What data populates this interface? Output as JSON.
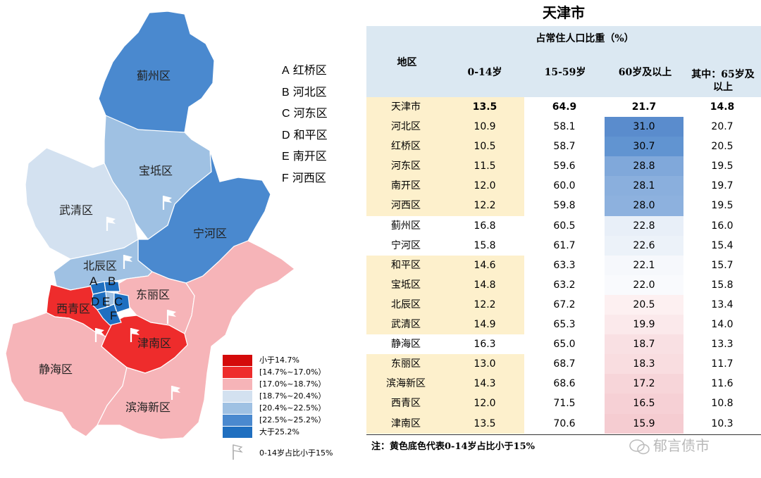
{
  "colors": {
    "lt_14_7": "#d40a0a",
    "r_14_7_17_0": "#ee2c2c",
    "r_17_0_18_7": "#f6b4b8",
    "r_18_7_20_4": "#d3e1f0",
    "r_20_4_22_5": "#9fc1e3",
    "r_22_5_25_2": "#4a89cf",
    "gt_25_2": "#1f6fc0",
    "header_bg": "#dbe8f2",
    "yellow_bg": "#fdf0cc"
  },
  "map": {
    "districts": {
      "jizhou": "蓟州区",
      "baodi": "宝坻区",
      "wuqing": "武清区",
      "ninghe": "宁河区",
      "beichen": "北辰区",
      "dongli": "东丽区",
      "xiqing": "西青区",
      "jinnan": "津南区",
      "jinghai": "静海区",
      "binhai": "滨海新区"
    },
    "letters": {
      "a": "A",
      "b": "B",
      "c": "C",
      "d": "D",
      "e": "E",
      "f": "F"
    },
    "key": [
      {
        "letter": "A",
        "name": "红桥区"
      },
      {
        "letter": "B",
        "name": "河北区"
      },
      {
        "letter": "C",
        "name": "河东区"
      },
      {
        "letter": "D",
        "name": "和平区"
      },
      {
        "letter": "E",
        "name": "南开区"
      },
      {
        "letter": "F",
        "name": "河西区"
      }
    ],
    "legend": [
      {
        "label": "小于14.7%",
        "color_key": "lt_14_7"
      },
      {
        "label": "[14.7%~17.0%）",
        "color_key": "r_14_7_17_0"
      },
      {
        "label": "[17.0%~18.7%）",
        "color_key": "r_17_0_18_7"
      },
      {
        "label": "[18.7%~20.4%）",
        "color_key": "r_18_7_20_4"
      },
      {
        "label": "[20.4%~22.5%）",
        "color_key": "r_20_4_22_5"
      },
      {
        "label": "[22.5%~25.2%）",
        "color_key": "r_22_5_25_2"
      },
      {
        "label": "大于25.2%",
        "color_key": "gt_25_2"
      }
    ],
    "flag_legend": "0-14岁占比小于15%"
  },
  "chart_data": {
    "type": "table",
    "title": "天津市",
    "group_header": "占常住人口比重（%）",
    "columns": [
      "地区",
      "0-14岁",
      "15-59岁",
      "60岁及以上",
      "其中：65岁及以上"
    ],
    "rows": [
      {
        "region": "天津市",
        "a0_14": "13.5",
        "a15_59": "64.9",
        "a60": "21.7",
        "a65": "14.8",
        "yellow": true,
        "bold": true
      },
      {
        "region": "河北区",
        "a0_14": "10.9",
        "a15_59": "58.1",
        "a60": "31.0",
        "a65": "20.7",
        "yellow": true,
        "shade": "#5a8ccd"
      },
      {
        "region": "红桥区",
        "a0_14": "10.5",
        "a15_59": "58.7",
        "a60": "30.7",
        "a65": "20.5",
        "yellow": true,
        "shade": "#6194d1"
      },
      {
        "region": "河东区",
        "a0_14": "11.5",
        "a15_59": "59.6",
        "a60": "28.8",
        "a65": "19.5",
        "yellow": true,
        "shade": "#80a8da"
      },
      {
        "region": "南开区",
        "a0_14": "12.0",
        "a15_59": "60.0",
        "a60": "28.1",
        "a65": "19.7",
        "yellow": true,
        "shade": "#8aafdd"
      },
      {
        "region": "河西区",
        "a0_14": "12.2",
        "a15_59": "59.8",
        "a60": "28.0",
        "a65": "19.5",
        "yellow": true,
        "shade": "#8db1de"
      },
      {
        "region": "蓟州区",
        "a0_14": "16.8",
        "a15_59": "60.5",
        "a60": "22.8",
        "a65": "16.0",
        "yellow": false,
        "shade": "#e8eff8"
      },
      {
        "region": "宁河区",
        "a0_14": "15.8",
        "a15_59": "61.7",
        "a60": "22.6",
        "a65": "15.4",
        "yellow": false,
        "shade": "#ecf2f9"
      },
      {
        "region": "和平区",
        "a0_14": "14.6",
        "a15_59": "63.3",
        "a60": "22.1",
        "a65": "15.7",
        "yellow": true,
        "shade": "#f6f8fc"
      },
      {
        "region": "宝坻区",
        "a0_14": "14.8",
        "a15_59": "63.2",
        "a60": "22.0",
        "a65": "15.8",
        "yellow": true,
        "shade": "#f9fafd"
      },
      {
        "region": "北辰区",
        "a0_14": "12.2",
        "a15_59": "67.2",
        "a60": "20.5",
        "a65": "13.4",
        "yellow": true,
        "shade": "#fdf0f1"
      },
      {
        "region": "武清区",
        "a0_14": "14.9",
        "a15_59": "65.3",
        "a60": "19.9",
        "a65": "14.0",
        "yellow": true,
        "shade": "#fbe9eb"
      },
      {
        "region": "静海区",
        "a0_14": "16.3",
        "a15_59": "65.0",
        "a60": "18.7",
        "a65": "13.3",
        "yellow": false,
        "shade": "#f9e0e3"
      },
      {
        "region": "东丽区",
        "a0_14": "13.0",
        "a15_59": "68.7",
        "a60": "18.3",
        "a65": "11.7",
        "yellow": true,
        "shade": "#f9dde0"
      },
      {
        "region": "滨海新区",
        "a0_14": "14.3",
        "a15_59": "68.6",
        "a60": "17.2",
        "a65": "11.6",
        "yellow": true,
        "shade": "#f7d5d9"
      },
      {
        "region": "西青区",
        "a0_14": "12.0",
        "a15_59": "71.5",
        "a60": "16.5",
        "a65": "10.8",
        "yellow": true,
        "shade": "#f6d0d5"
      },
      {
        "region": "津南区",
        "a0_14": "13.5",
        "a15_59": "70.6",
        "a60": "15.9",
        "a65": "10.3",
        "yellow": true,
        "shade": "#f5ccd1"
      }
    ],
    "note": "注：黄色底色代表0-14岁占比小于15%"
  },
  "watermark": "郁言债市"
}
